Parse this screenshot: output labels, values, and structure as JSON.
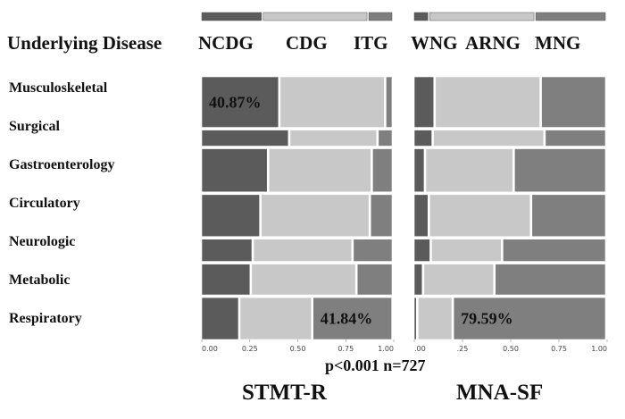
{
  "header": {
    "left_title": "Underlying Disease",
    "left_legend": [
      "NCDG",
      "CDG",
      "ITG"
    ],
    "right_legend": [
      "WNG",
      "ARNG",
      "MNG"
    ]
  },
  "footer": {
    "stats": "p<0.001 n=727",
    "left_label": "STMT-R",
    "right_label": "MNA-SF"
  },
  "colors": {
    "dark": "#5b5b5b",
    "light": "#c8c8c8",
    "mid": "#7f7f7f",
    "border": "#ffffff"
  },
  "chart_data": [
    {
      "type": "bar",
      "title": "STMT-R",
      "orientation": "horizontal-stacked-100",
      "categories": [
        "Musculoskeletal",
        "Surgical",
        "Gastroenterology",
        "Circulatory",
        "Neurologic",
        "Metabolic",
        "Respiratory"
      ],
      "category_weights": [
        0.205,
        0.065,
        0.175,
        0.17,
        0.09,
        0.125,
        0.17
      ],
      "series": [
        {
          "name": "NCDG",
          "color": "#5b5b5b",
          "values": [
            0.4087,
            0.46,
            0.35,
            0.31,
            0.27,
            0.26,
            0.2
          ]
        },
        {
          "name": "CDG",
          "color": "#c8c8c8",
          "values": [
            0.5513,
            0.46,
            0.54,
            0.57,
            0.52,
            0.55,
            0.38
          ]
        },
        {
          "name": "ITG",
          "color": "#7f7f7f",
          "values": [
            0.04,
            0.08,
            0.11,
            0.12,
            0.21,
            0.19,
            0.4184
          ]
        }
      ],
      "x_ticks": [
        "0.00",
        "0.25",
        "0.50",
        "0.75",
        "1.00"
      ],
      "xlim": [
        0,
        1
      ],
      "legend_proportions": [
        0.32,
        0.55,
        0.13
      ],
      "annotations": [
        {
          "category": "Musculoskeletal",
          "series": "NCDG",
          "text": "40.87%"
        },
        {
          "category": "Respiratory",
          "series": "ITG",
          "text": "41.84%"
        }
      ]
    },
    {
      "type": "bar",
      "title": "MNA-SF",
      "orientation": "horizontal-stacked-100",
      "categories": [
        "Musculoskeletal",
        "Surgical",
        "Gastroenterology",
        "Circulatory",
        "Neurologic",
        "Metabolic",
        "Respiratory"
      ],
      "category_weights": [
        0.205,
        0.065,
        0.175,
        0.17,
        0.09,
        0.125,
        0.17
      ],
      "series": [
        {
          "name": "WNG",
          "color": "#5b5b5b",
          "values": [
            0.11,
            0.1,
            0.06,
            0.08,
            0.09,
            0.05,
            0.02
          ]
        },
        {
          "name": "ARNG",
          "color": "#c8c8c8",
          "values": [
            0.55,
            0.58,
            0.46,
            0.53,
            0.37,
            0.37,
            0.1841
          ]
        },
        {
          "name": "MNG",
          "color": "#7f7f7f",
          "values": [
            0.34,
            0.32,
            0.48,
            0.39,
            0.54,
            0.58,
            0.7959
          ]
        }
      ],
      "x_ticks": [
        ".00",
        ".25",
        "0.50",
        "0.75",
        "1.00"
      ],
      "xlim": [
        0,
        1
      ],
      "legend_proportions": [
        0.08,
        0.55,
        0.37
      ],
      "annotations": [
        {
          "category": "Respiratory",
          "series": "MNG",
          "text": "79.59%"
        }
      ]
    }
  ]
}
